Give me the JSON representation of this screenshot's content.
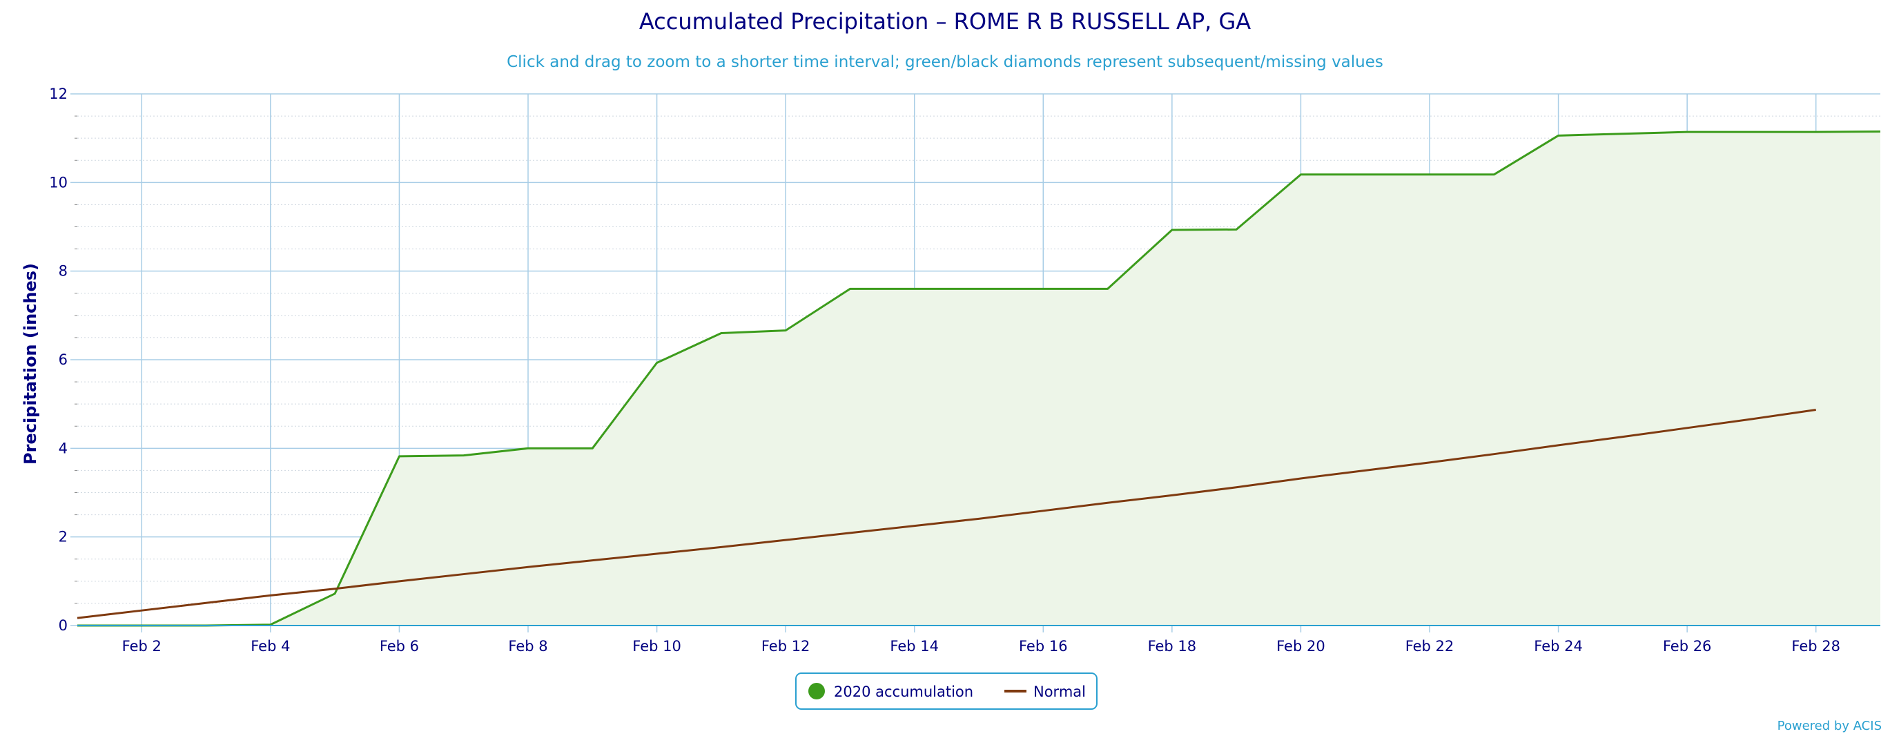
{
  "chart_data": {
    "type": "area",
    "title": "Accumulated Precipitation – ROME R B RUSSELL AP, GA",
    "subtitle": "Click and drag to zoom to a shorter time interval; green/black diamonds represent subsequent/missing values",
    "xlabel": "",
    "ylabel": "Precipitation (inches)",
    "ylim": [
      0,
      12
    ],
    "yticks": [
      0,
      2,
      4,
      6,
      8,
      10,
      12
    ],
    "xlim_days": [
      1,
      29
    ],
    "xticks": [
      {
        "day": 2,
        "label": "Feb 2"
      },
      {
        "day": 4,
        "label": "Feb 4"
      },
      {
        "day": 6,
        "label": "Feb 6"
      },
      {
        "day": 8,
        "label": "Feb 8"
      },
      {
        "day": 10,
        "label": "Feb 10"
      },
      {
        "day": 12,
        "label": "Feb 12"
      },
      {
        "day": 14,
        "label": "Feb 14"
      },
      {
        "day": 16,
        "label": "Feb 16"
      },
      {
        "day": 18,
        "label": "Feb 18"
      },
      {
        "day": 20,
        "label": "Feb 20"
      },
      {
        "day": 22,
        "label": "Feb 22"
      },
      {
        "day": 24,
        "label": "Feb 24"
      },
      {
        "day": 26,
        "label": "Feb 26"
      },
      {
        "day": 28,
        "label": "Feb 28"
      }
    ],
    "grid": true,
    "legend_position": "bottom-center",
    "series": [
      {
        "name": "2020 accumulation",
        "type": "area",
        "color": "#3c9c1c",
        "fill": "#edf5e8",
        "x": [
          1,
          2,
          3,
          4,
          5,
          6,
          7,
          8,
          9,
          10,
          11,
          12,
          13,
          14,
          15,
          16,
          17,
          18,
          19,
          20,
          21,
          22,
          23,
          24,
          25,
          26,
          27,
          28,
          29
        ],
        "values": [
          0.0,
          0.0,
          0.0,
          0.02,
          0.72,
          3.82,
          3.84,
          4.0,
          4.0,
          5.93,
          6.6,
          6.66,
          7.6,
          7.6,
          7.6,
          7.6,
          7.6,
          8.93,
          8.94,
          10.18,
          10.18,
          10.18,
          10.18,
          11.06,
          11.1,
          11.14,
          11.14,
          11.14,
          11.15
        ]
      },
      {
        "name": "Normal",
        "type": "line",
        "color": "#7f3a10",
        "x": [
          1,
          2,
          3,
          4,
          5,
          6,
          7,
          8,
          9,
          10,
          11,
          12,
          13,
          14,
          15,
          16,
          17,
          18,
          19,
          20,
          21,
          22,
          23,
          24,
          25,
          26,
          27,
          28
        ],
        "values": [
          0.17,
          0.34,
          0.51,
          0.68,
          0.83,
          1.0,
          1.16,
          1.32,
          1.47,
          1.62,
          1.77,
          1.93,
          2.09,
          2.25,
          2.41,
          2.59,
          2.77,
          2.94,
          3.12,
          3.32,
          3.5,
          3.68,
          3.87,
          4.07,
          4.26,
          4.46,
          4.66,
          4.87
        ]
      }
    ]
  },
  "credit": "Powered by ACIS"
}
